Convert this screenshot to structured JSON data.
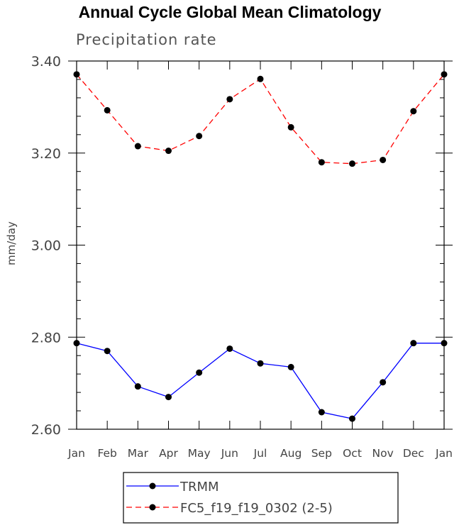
{
  "chart_data": {
    "type": "line",
    "title": "Annual Cycle Global Mean Climatology",
    "subtitle": "Precipitation rate",
    "xlabel": "",
    "ylabel": "mm/day",
    "categories": [
      "Jan",
      "Feb",
      "Mar",
      "Apr",
      "May",
      "Jun",
      "Jul",
      "Aug",
      "Sep",
      "Oct",
      "Nov",
      "Dec",
      "Jan"
    ],
    "ylim": [
      2.6,
      3.4
    ],
    "yticks": [
      "2.60",
      "2.80",
      "3.00",
      "3.20",
      "3.40"
    ],
    "ytick_values": [
      2.6,
      2.8,
      3.0,
      3.2,
      3.4
    ],
    "grid": false,
    "legend_position": "bottom-center",
    "series": [
      {
        "name": "TRMM",
        "color": "#0000ff",
        "style": "solid",
        "values": [
          2.787,
          2.77,
          2.693,
          2.67,
          2.723,
          2.775,
          2.743,
          2.735,
          2.637,
          2.623,
          2.702,
          2.787,
          2.787
        ]
      },
      {
        "name": "FC5_f19_f19_0302 (2-5)",
        "color": "#ff0000",
        "style": "dashed",
        "values": [
          3.371,
          3.293,
          3.215,
          3.205,
          3.237,
          3.317,
          3.361,
          3.256,
          3.18,
          3.177,
          3.185,
          3.291,
          3.371
        ]
      }
    ]
  }
}
